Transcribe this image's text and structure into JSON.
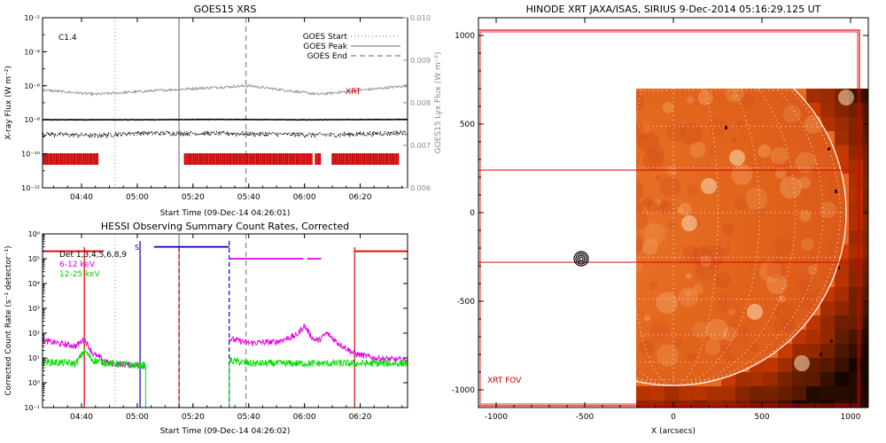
{
  "colors": {
    "axis": "#000000",
    "goes_flux": "#000000",
    "goes_lya": "#999999",
    "xrt_mark": "#cc0000",
    "red_line": "#dd0000",
    "blue_line": "#0000cc",
    "det_magenta": "#e000e0",
    "det_green": "#00dd00",
    "sun_dark": "#3a0500",
    "sun_mid": "#e05a10",
    "sun_bright": "#fbe4c0"
  },
  "chart_data": [
    {
      "id": "goes",
      "type": "line",
      "title": "GOES15 XRS",
      "xlabel": "Start Time (09-Dec-14 04:26:01)",
      "ylabel": "X-ray Flux (W m⁻²)",
      "ylabel_right": "GOES15 Lyx Flux (W m⁻²)",
      "flare_class": "C1.4",
      "xlim": [
        "04:26",
        "06:37"
      ],
      "x_ticks": [
        "04:40",
        "05:00",
        "05:20",
        "05:40",
        "06:00",
        "06:20"
      ],
      "y_scale": "log",
      "ylim": [
        1e-12,
        0.01
      ],
      "y_ticks": [
        "10⁻¹²",
        "10⁻¹⁰",
        "10⁻⁸",
        "10⁻⁶",
        "10⁻⁴",
        "10⁻²"
      ],
      "y2lim": [
        0.006,
        0.01
      ],
      "y2_ticks": [
        "0.006",
        "0.007",
        "0.008",
        "0.009",
        "0.010"
      ],
      "legend": [
        "GOES Start",
        "GOES Peak",
        "GOES End"
      ],
      "legend_position": "top-right",
      "event_times": {
        "start": "04:52",
        "peak": "05:15",
        "end": "05:39"
      },
      "series": [
        {
          "name": "",
          "axis": "left",
          "x": [
            "04:26",
            "05:00",
            "05:30",
            "06:00",
            "06:37"
          ],
          "y": [
            1e-08,
            1e-08,
            1.05e-08,
            1e-08,
            1.05e-08
          ]
        },
        {
          "name": "",
          "axis": "right",
          "x": [
            "04:26",
            "04:45",
            "05:10",
            "05:40",
            "06:05",
            "06:37"
          ],
          "y": [
            0.0083,
            0.0082,
            0.0083,
            0.0084,
            0.0082,
            0.0084
          ]
        },
        {
          "name": "",
          "axis": "left",
          "x": [
            "04:26",
            "04:45",
            "05:00",
            "05:30",
            "06:10",
            "06:37"
          ],
          "y": [
            1.5e-09,
            1.2e-09,
            1.7e-09,
            1.6e-09,
            1.3e-09,
            1.8e-09
          ]
        }
      ],
      "xrt_label": "XRT",
      "xrt_intervals": [
        [
          "04:26",
          "04:46"
        ],
        [
          "05:17",
          "06:03"
        ],
        [
          "06:04",
          "06:06"
        ],
        [
          "06:10",
          "06:34"
        ]
      ]
    },
    {
      "id": "hessi",
      "type": "line",
      "title": "HESSI Observing Summary Count Rates, Corrected",
      "xlabel": "Start Time (09-Dec-14 04:26:02)",
      "ylabel": "Corrected Count Rate (s⁻¹ detector⁻¹)",
      "xlim": [
        "04:26",
        "06:37"
      ],
      "x_ticks": [
        "04:40",
        "05:00",
        "05:20",
        "05:40",
        "06:00",
        "06:20"
      ],
      "y_scale": "log",
      "ylim": [
        0.1,
        1000000.0
      ],
      "y_ticks": [
        "10⁻¹",
        "10⁰",
        "10¹",
        "10²",
        "10³",
        "10⁴",
        "10⁵",
        "10⁶"
      ],
      "legend": [
        "Det 1,3,4,5,6,8,9",
        "6-12 keV",
        "12-25 keV"
      ],
      "legend_position": "top-left",
      "saa_label": "S",
      "series": [
        {
          "name": "6-12 keV",
          "x": [
            "04:26",
            "04:38",
            "04:41",
            "04:44",
            "04:50",
            "05:00",
            "05:03",
            "05:33",
            "05:40",
            "05:50",
            "05:57",
            "06:00",
            "06:03",
            "06:05",
            "06:08",
            "06:12",
            "06:18",
            "06:25",
            "06:37"
          ],
          "y": [
            50,
            30,
            60,
            15,
            6,
            5,
            5,
            60,
            40,
            45,
            80,
            200,
            60,
            50,
            100,
            40,
            15,
            10,
            8
          ]
        },
        {
          "name": "12-25 keV",
          "x": [
            "04:26",
            "04:38",
            "04:41",
            "04:44",
            "04:50",
            "05:00",
            "05:03",
            "05:33",
            "05:40",
            "06:00",
            "06:20",
            "06:37"
          ],
          "y": [
            7,
            6,
            20,
            8,
            6,
            5,
            5,
            8,
            6,
            6,
            6,
            6
          ]
        }
      ],
      "attenuator_levels": [
        {
          "x": [
            "04:26",
            "04:48"
          ],
          "y": 200000.0,
          "color": "red"
        },
        {
          "x": [
            "05:06",
            "05:33"
          ],
          "y": 300000.0,
          "color": "blue"
        },
        {
          "x": [
            "05:33",
            "06:06"
          ],
          "y": 100000.0,
          "color": "magenta"
        },
        {
          "x": [
            "06:18",
            "06:37"
          ],
          "y": 200000.0,
          "color": "red"
        }
      ],
      "event_times": {
        "start": "04:52",
        "peak": "05:15",
        "end": "05:39"
      }
    },
    {
      "id": "xrt",
      "type": "heatmap",
      "title": "HINODE XRT JAXA/ISAS, SIRIUS  9-Dec-2014 05:16:29.125 UT",
      "xlabel": "X (arcsecs)",
      "ylabel": "",
      "xlim": [
        -1100,
        1100
      ],
      "ylim": [
        -1100,
        1100
      ],
      "x_ticks": [
        -1000,
        -500,
        0,
        500,
        1000
      ],
      "y_ticks": [
        -1000,
        -500,
        0,
        500,
        1000
      ],
      "fov_label": "XRT FOV",
      "solar_limb_radius": 975,
      "image_extent": {
        "x": [
          -210,
          1100
        ],
        "y": [
          -1100,
          700
        ]
      },
      "fov_box": {
        "x": [
          -1100,
          1050
        ],
        "y": [
          -1090,
          1030
        ]
      },
      "band": {
        "y": [
          -280,
          240
        ]
      },
      "flare_location": [
        -520,
        -260
      ]
    }
  ]
}
